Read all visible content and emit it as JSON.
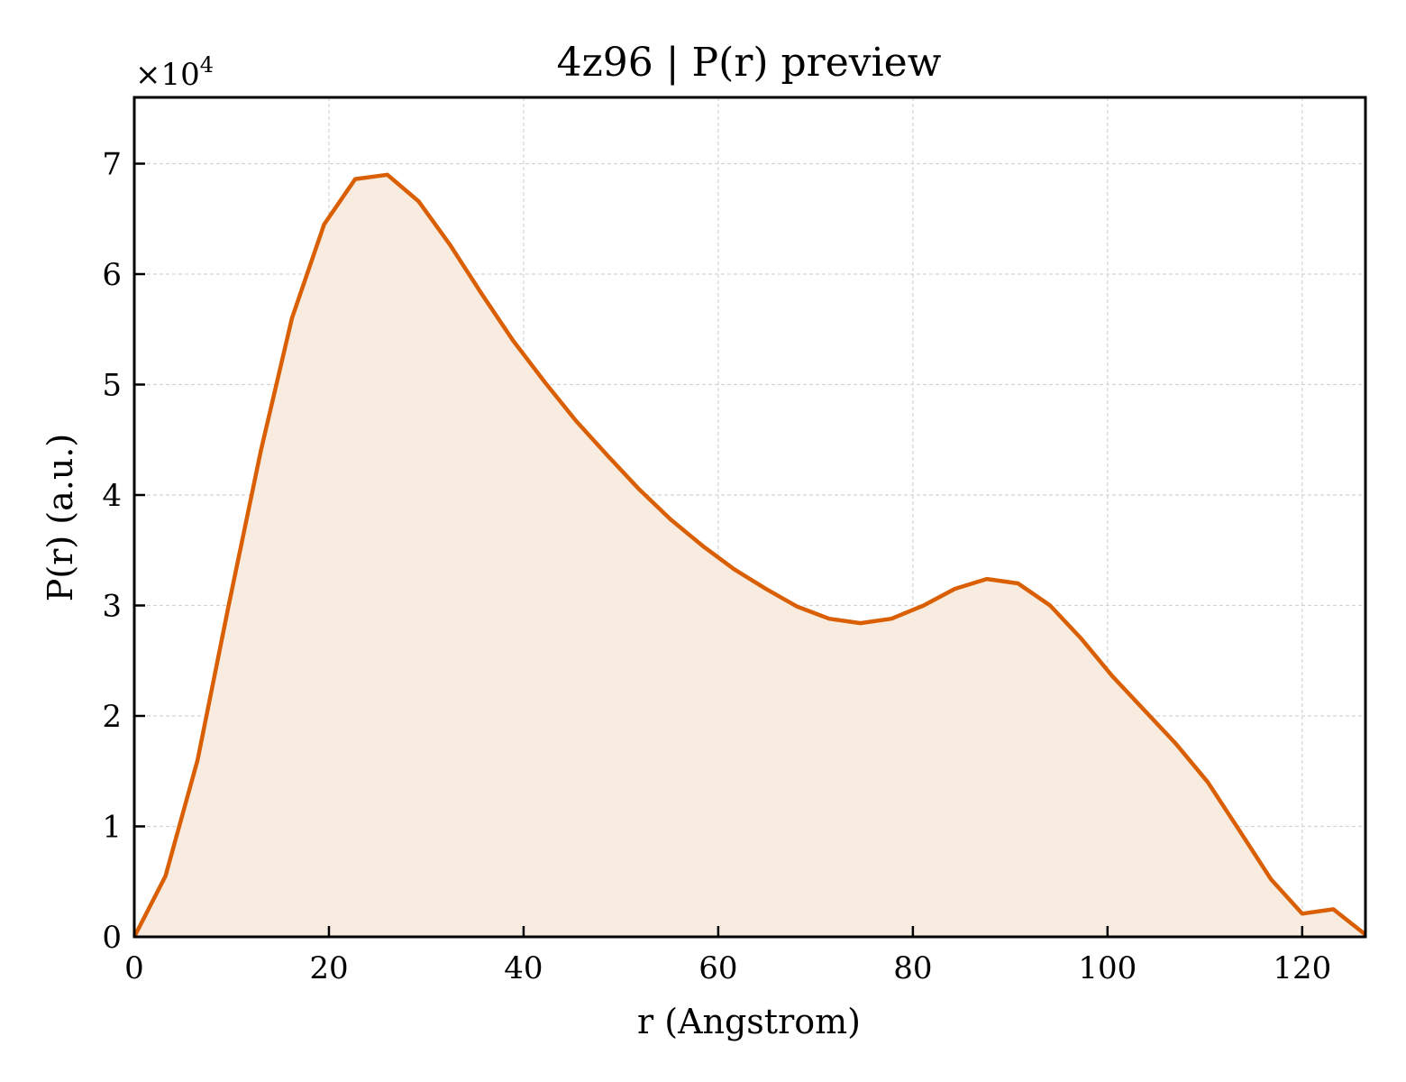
{
  "chart_data": {
    "type": "area",
    "title": "4z96 | P(r) preview",
    "xlabel": "r (Angstrom)",
    "ylabel": "P(r) (a.u.)",
    "y_multiplier_base": "×10",
    "y_multiplier_exp": "4",
    "xlim": [
      0,
      126.5
    ],
    "ylim": [
      0,
      7.6
    ],
    "x_ticks": [
      0,
      20,
      40,
      60,
      80,
      100,
      120
    ],
    "y_ticks": [
      0,
      1,
      2,
      3,
      4,
      5,
      6,
      7
    ],
    "grid": true,
    "line_color": "#d95f02",
    "fill_color": "#f8ebe0",
    "series": [
      {
        "x": [
          0,
          3.2,
          6.5,
          9.7,
          13.0,
          16.2,
          19.5,
          22.7,
          26.0,
          29.2,
          32.4,
          35.7,
          38.9,
          42.2,
          45.4,
          48.7,
          51.9,
          55.1,
          58.4,
          61.6,
          64.9,
          68.1,
          71.4,
          74.6,
          77.8,
          81.1,
          84.3,
          87.6,
          90.8,
          94.1,
          97.3,
          100.5,
          103.8,
          107.0,
          110.3,
          113.5,
          116.8,
          120.0,
          123.2,
          126.5
        ],
        "y": [
          0,
          0.55,
          1.6,
          3.0,
          4.4,
          5.6,
          6.45,
          6.86,
          6.9,
          6.66,
          6.27,
          5.82,
          5.4,
          5.02,
          4.67,
          4.35,
          4.05,
          3.78,
          3.54,
          3.33,
          3.15,
          2.99,
          2.88,
          2.84,
          2.88,
          3.0,
          3.15,
          3.24,
          3.2,
          3.0,
          2.7,
          2.36,
          2.05,
          1.75,
          1.4,
          0.97,
          0.52,
          0.21,
          0.25,
          0.02
        ]
      }
    ]
  }
}
